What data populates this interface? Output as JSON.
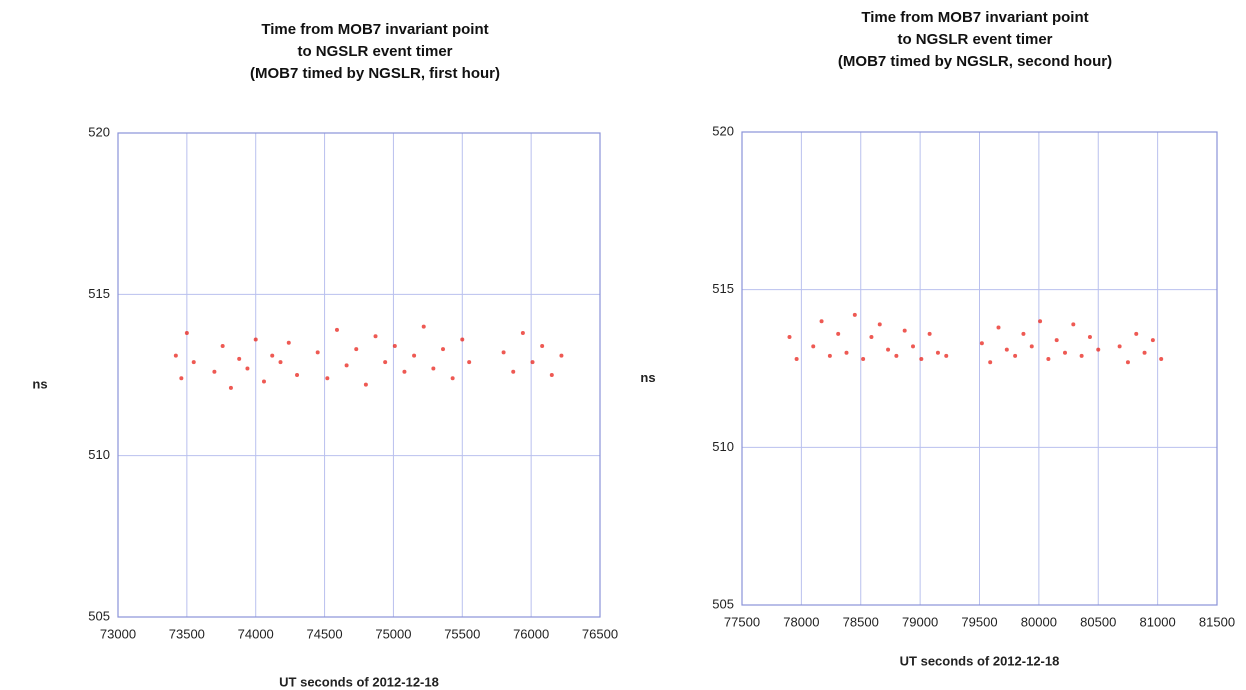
{
  "chart_data": [
    {
      "type": "scatter",
      "title": [
        "Time from MOB7 invariant point",
        "to NGSLR event timer",
        "(MOB7 timed by NGSLR, first hour)"
      ],
      "x_label": "UT seconds of 2012-12-18",
      "y_label": "ns",
      "xlim": [
        73000,
        76500
      ],
      "xticks": [
        73000,
        73500,
        74000,
        74500,
        75000,
        75500,
        76000,
        76500
      ],
      "ylim": [
        505,
        520
      ],
      "yticks": [
        505,
        510,
        515,
        520
      ],
      "grid": true,
      "color": "#e8221a",
      "x": [
        73420,
        73460,
        73500,
        73550,
        73700,
        73760,
        73820,
        73880,
        73940,
        74000,
        74060,
        74120,
        74180,
        74240,
        74300,
        74450,
        74520,
        74590,
        74660,
        74730,
        74800,
        74870,
        74940,
        75010,
        75080,
        75150,
        75220,
        75290,
        75360,
        75430,
        75500,
        75550,
        75800,
        75870,
        75940,
        76010,
        76080,
        76150,
        76220
      ],
      "y": [
        513.1,
        512.4,
        513.8,
        512.9,
        512.6,
        513.4,
        512.1,
        513.0,
        512.7,
        513.6,
        512.3,
        513.1,
        512.9,
        513.5,
        512.5,
        513.2,
        512.4,
        513.9,
        512.8,
        513.3,
        512.2,
        513.7,
        512.9,
        513.4,
        512.6,
        513.1,
        514.0,
        512.7,
        513.3,
        512.4,
        513.6,
        512.9,
        513.2,
        512.6,
        513.8,
        512.9,
        513.4,
        512.5,
        513.1
      ]
    },
    {
      "type": "scatter",
      "title": [
        "Time from MOB7 invariant point",
        "to NGSLR event timer",
        "(MOB7 timed by NGSLR, second hour)"
      ],
      "x_label": "UT seconds of 2012-12-18",
      "y_label": "ns",
      "xlim": [
        77500,
        81500
      ],
      "xticks": [
        77500,
        78000,
        78500,
        79000,
        79500,
        80000,
        80500,
        81000,
        81500
      ],
      "ylim": [
        505,
        520
      ],
      "yticks": [
        505,
        510,
        515,
        520
      ],
      "grid": true,
      "color": "#e8221a",
      "x": [
        77900,
        77960,
        78100,
        78170,
        78240,
        78310,
        78380,
        78450,
        78520,
        78590,
        78660,
        78730,
        78800,
        78870,
        78940,
        79010,
        79080,
        79150,
        79220,
        79520,
        79590,
        79660,
        79730,
        79800,
        79870,
        79940,
        80010,
        80080,
        80150,
        80220,
        80290,
        80360,
        80430,
        80500,
        80680,
        80750,
        80820,
        80890,
        80960,
        81030
      ],
      "y": [
        513.5,
        512.8,
        513.2,
        514.0,
        512.9,
        513.6,
        513.0,
        514.2,
        512.8,
        513.5,
        513.9,
        513.1,
        512.9,
        513.7,
        513.2,
        512.8,
        513.6,
        513.0,
        512.9,
        513.3,
        512.7,
        513.8,
        513.1,
        512.9,
        513.6,
        513.2,
        514.0,
        512.8,
        513.4,
        513.0,
        513.9,
        512.9,
        513.5,
        513.1,
        513.2,
        512.7,
        513.6,
        513.0,
        513.4,
        512.8
      ]
    }
  ]
}
